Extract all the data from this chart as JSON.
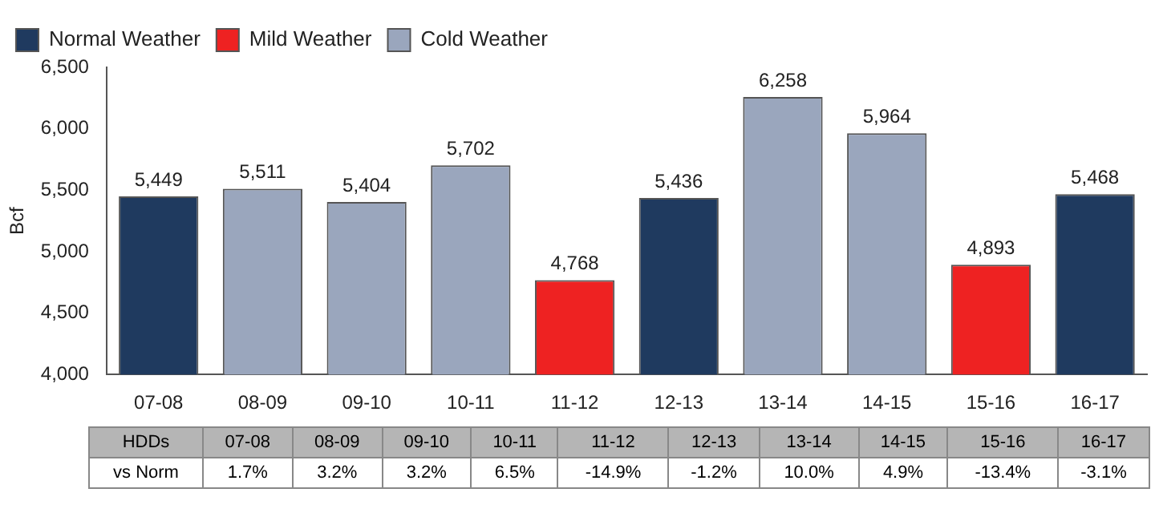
{
  "chart_data": {
    "type": "bar",
    "ylabel": "Bcf",
    "categories": [
      "07-08",
      "08-09",
      "09-10",
      "10-11",
      "11-12",
      "12-13",
      "13-14",
      "14-15",
      "15-16",
      "16-17"
    ],
    "series": [
      {
        "name": "Normal Weather",
        "color": "#1f3a5f",
        "values": [
          5449,
          null,
          null,
          null,
          null,
          5436,
          null,
          null,
          null,
          5468
        ],
        "value_labels": [
          "5,449",
          null,
          null,
          null,
          null,
          "5,436",
          null,
          null,
          null,
          "5,468"
        ]
      },
      {
        "name": "Mild Weather",
        "color": "#ee2222",
        "values": [
          null,
          null,
          null,
          null,
          4768,
          null,
          null,
          null,
          4893,
          null
        ],
        "value_labels": [
          null,
          null,
          null,
          null,
          "4,768",
          null,
          null,
          null,
          "4,893",
          null
        ]
      },
      {
        "name": "Cold Weather",
        "color": "#9aa6bd",
        "values": [
          null,
          5511,
          5404,
          5702,
          null,
          null,
          6258,
          5964,
          null,
          null
        ],
        "value_labels": [
          null,
          "5,511",
          "5,404",
          "5,702",
          null,
          null,
          "6,258",
          "5,964",
          null,
          null
        ]
      }
    ],
    "ylim": [
      4000,
      6500
    ],
    "yticks": [
      {
        "value": 4000,
        "label": "4,000"
      },
      {
        "value": 4500,
        "label": "4,500"
      },
      {
        "value": 5000,
        "label": "5,000"
      },
      {
        "value": 5500,
        "label": "5,500"
      },
      {
        "value": 6000,
        "label": "6,000"
      },
      {
        "value": 6500,
        "label": "6,500"
      }
    ],
    "grid": false,
    "legend": "top left",
    "annotations": [
      "HDDs",
      "vs Norm",
      "1.7%",
      "3.2%",
      "3.2%",
      "6.5%",
      "-14.9%",
      "-1.2%",
      "10.0%",
      "4.9%",
      "-13.4%",
      "-3.1%"
    ]
  }
}
